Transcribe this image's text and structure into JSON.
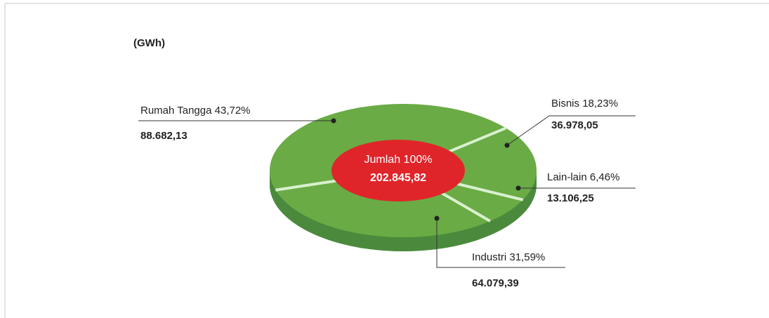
{
  "chart_data": {
    "type": "pie",
    "title": "(GWh)",
    "categories": [
      "Rumah Tangga",
      "Bisnis",
      "Lain-lain",
      "Industri"
    ],
    "values": [
      88682.13,
      36978.05,
      13106.25,
      64079.39
    ],
    "value_labels": [
      "88.682,13",
      "36.978,05",
      "13.106,25",
      "64.079,39"
    ],
    "percentages": [
      43.72,
      18.23,
      6.46,
      31.59
    ],
    "percent_labels": [
      "43,72%",
      "18,23%",
      "6,46%",
      "31,59%"
    ],
    "color": "#6aab45",
    "center": {
      "label": "Jumlah 100%",
      "value": 202845.82,
      "value_label": "202.845,82",
      "color": "#e0252a"
    }
  }
}
